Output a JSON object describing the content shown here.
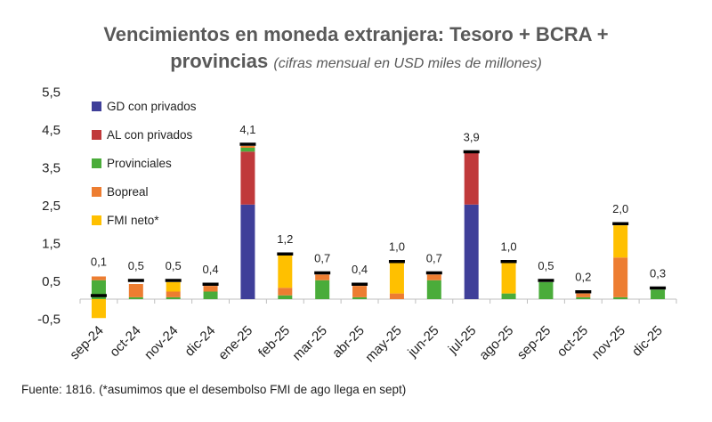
{
  "chart_data": {
    "type": "bar",
    "stacked": true,
    "title_main": "Vencimientos en moneda extranjera: Tesoro + BCRA +",
    "title_line2": "provincias",
    "subtitle": "(cifras mensual en USD miles de millones)",
    "categories": [
      "sep-24",
      "oct-24",
      "nov-24",
      "dic-24",
      "ene-25",
      "feb-25",
      "mar-25",
      "abr-25",
      "may-25",
      "jun-25",
      "jul-25",
      "ago-25",
      "sep-25",
      "oct-25",
      "nov-25",
      "dic-25"
    ],
    "series": [
      {
        "name": "GD con privados",
        "color": "#3f3f99",
        "values": [
          0,
          0,
          0,
          0,
          2.5,
          0,
          0,
          0,
          0,
          0,
          2.5,
          0,
          0,
          0,
          0,
          0
        ]
      },
      {
        "name": "AL con privados",
        "color": "#c0393b",
        "values": [
          0,
          0,
          0,
          0,
          1.4,
          0,
          0,
          0,
          0,
          0,
          1.4,
          0,
          0,
          0,
          0,
          0
        ]
      },
      {
        "name": "Provinciales",
        "color": "#4aac3a",
        "values": [
          0.5,
          0.05,
          0.05,
          0.2,
          0.1,
          0.1,
          0.5,
          0.05,
          0,
          0.5,
          0,
          0.15,
          0.45,
          0.05,
          0.05,
          0.25
        ]
      },
      {
        "name": "Bopreal",
        "color": "#ed7d31",
        "values": [
          0.1,
          0.35,
          0.15,
          0.15,
          0.05,
          0.2,
          0.15,
          0.3,
          0.15,
          0.15,
          0,
          0,
          0,
          0.1,
          1.05,
          0
        ]
      },
      {
        "name": "FMI neto*",
        "color": "#ffc000",
        "values": [
          -0.5,
          0,
          0.25,
          0,
          0,
          0.9,
          0,
          0,
          0.85,
          0,
          0,
          0.85,
          0,
          0,
          0.85,
          0
        ]
      }
    ],
    "totals": [
      0.1,
      0.5,
      0.5,
      0.4,
      4.1,
      1.2,
      0.7,
      0.4,
      1.0,
      0.7,
      3.9,
      1.0,
      0.5,
      0.2,
      2.0,
      0.3
    ],
    "total_labels": [
      "0,1",
      "0,5",
      "0,5",
      "0,4",
      "4,1",
      "1,2",
      "0,7",
      "0,4",
      "1,0",
      "0,7",
      "3,9",
      "1,0",
      "0,5",
      "0,2",
      "2,0",
      "0,3"
    ],
    "yticks": [
      -0.5,
      0.5,
      1.5,
      2.5,
      3.5,
      4.5,
      5.5
    ],
    "ytick_labels": [
      "-0,5",
      "0,5",
      "1,5",
      "2,5",
      "3,5",
      "4,5",
      "5,5"
    ],
    "ylim": [
      -0.5,
      5.5
    ],
    "grid": false,
    "legend_position": "top-left",
    "xlabel": "",
    "ylabel": ""
  },
  "source_note": "Fuente: 1816. (*asumimos que el desembolso FMI de ago llega en sept)"
}
